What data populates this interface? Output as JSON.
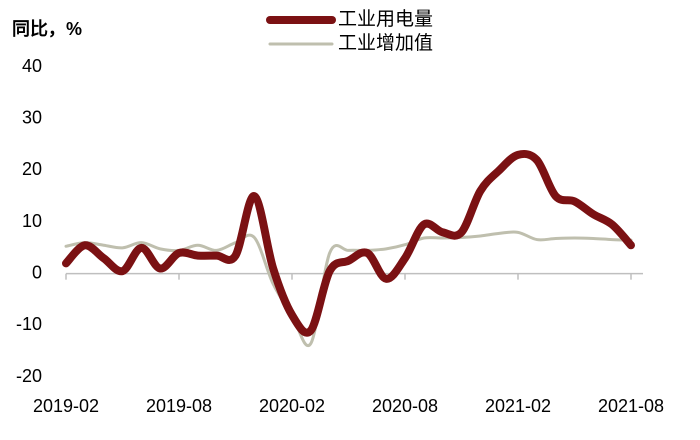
{
  "chart_data": {
    "type": "line",
    "ylabel": "同比，%",
    "categories": [
      "2019-02",
      null,
      null,
      null,
      null,
      null,
      "2019-08",
      null,
      null,
      null,
      null,
      null,
      "2020-02",
      null,
      null,
      null,
      null,
      null,
      "2020-08",
      null,
      null,
      null,
      null,
      null,
      "2021-02",
      null,
      null,
      null,
      null,
      null,
      "2021-08"
    ],
    "series": [
      {
        "name": "工业用电量",
        "color": "#7b1113",
        "values": [
          2,
          5.5,
          3,
          0.5,
          5,
          1,
          4,
          3.5,
          3.5,
          3.5,
          15,
          1,
          -8,
          -11,
          0.5,
          2.5,
          4,
          -1,
          3,
          9.5,
          8,
          8,
          16,
          20,
          23,
          22,
          15,
          14,
          11.5,
          9.5,
          5.5
        ]
      },
      {
        "name": "工业增加值",
        "color": "#bfbfae",
        "values": [
          5.3,
          6,
          5.5,
          5,
          6,
          4.8,
          4.5,
          5.5,
          4.5,
          6,
          7,
          -2,
          -8,
          -13.5,
          4,
          4.5,
          4.5,
          4.8,
          5.6,
          6.9,
          6.9,
          7,
          7.3,
          7.8,
          8,
          6.6,
          6.8,
          6.9,
          6.8,
          6.6,
          6.5
        ]
      }
    ],
    "ylim": [
      -20,
      40
    ],
    "yticks": [
      -20,
      -10,
      0,
      10,
      20,
      30,
      40
    ],
    "grid": false
  }
}
